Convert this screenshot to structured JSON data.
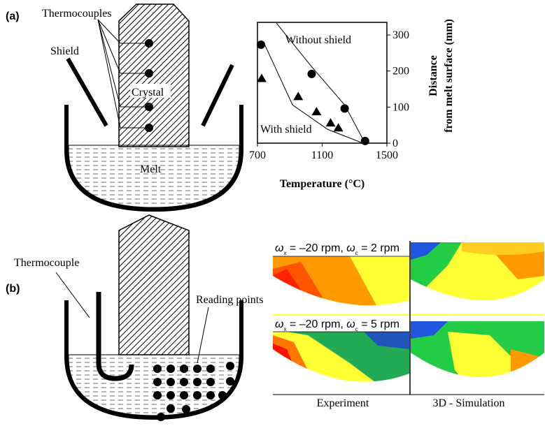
{
  "panel_a": {
    "tag": "(a)",
    "thermocouples": "Thermocouples",
    "shield": "Shield",
    "crystal": "Crystal",
    "melt": "Melt"
  },
  "panel_b": {
    "tag": "(b)",
    "thermocouple": "Thermocouple",
    "reading_points": "Reading points",
    "conditions": [
      {
        "wx": "ω",
        "sx": "x",
        "vx": " = –20 rpm, ",
        "wc": "ω",
        "sc": "c",
        "vc": " = 2 rpm"
      },
      {
        "wx": "ω",
        "sx": "x",
        "vx": " = –20 rpm, ",
        "wc": "ω",
        "sc": "c",
        "vc": " =  5 rpm"
      }
    ],
    "experiment": "Experiment",
    "simulation": "3D - Simulation"
  },
  "chart_data": {
    "type": "scatter",
    "xlabel": "Temperature (°C)",
    "ylabel": [
      "Distance",
      "from melt surface (mm)"
    ],
    "xlim": [
      700,
      1500
    ],
    "xticks": [
      700,
      1100,
      1500
    ],
    "ylim": [
      0,
      335
    ],
    "yticks": [
      0,
      100,
      200,
      300
    ],
    "series": [
      {
        "name": "Without shield",
        "marker": "circle",
        "x": [
          722,
          1035,
          1239,
          1365
        ],
        "values": [
          273,
          192,
          96,
          6
        ],
        "curve_x": [
          817,
          1035,
          1239,
          1365
        ],
        "curve_y": [
          333,
          212,
          106,
          0
        ]
      },
      {
        "name": "With shield",
        "marker": "triangle",
        "x": [
          726,
          952,
          1065,
          1152,
          1200
        ],
        "values": [
          179,
          129,
          87,
          56,
          42
        ],
        "curve_x": [
          743,
          917,
          1135,
          1352
        ],
        "curve_y": [
          275,
          106,
          38,
          0
        ]
      }
    ]
  }
}
